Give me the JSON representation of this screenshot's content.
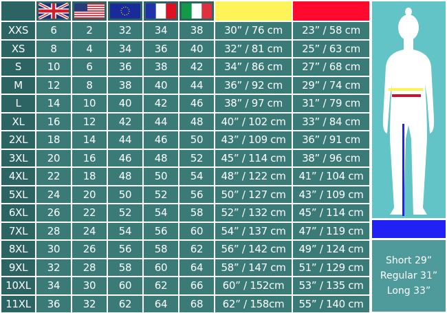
{
  "header": {
    "flags": [
      "uk-flag",
      "us-flag",
      "eu-flag",
      "france-flag",
      "italy-flag"
    ],
    "measure_colors": {
      "bust": "#fff35a",
      "waist": "#ff0a2e"
    }
  },
  "rows": [
    [
      "XXS",
      "6",
      "2",
      "32",
      "34",
      "38",
      "30” / 76 cm",
      "23” / 58 cm"
    ],
    [
      "XS",
      "8",
      "4",
      "34",
      "36",
      "40",
      "32” / 81 cm",
      "25” / 63 cm"
    ],
    [
      "S",
      "10",
      "6",
      "36",
      "38",
      "42",
      "34” / 86 cm",
      "27” / 68 cm"
    ],
    [
      "M",
      "12",
      "8",
      "38",
      "40",
      "44",
      "36” / 92 cm",
      "29” / 74 cm"
    ],
    [
      "L",
      "14",
      "10",
      "40",
      "42",
      "46",
      "38” / 97 cm",
      "31” / 79 cm"
    ],
    [
      "XL",
      "16",
      "12",
      "42",
      "44",
      "48",
      "40” / 102 cm",
      "33” / 84 cm"
    ],
    [
      "2XL",
      "18",
      "14",
      "44",
      "46",
      "50",
      "43” / 109 cm",
      "36” / 91 cm"
    ],
    [
      "3XL",
      "20",
      "16",
      "46",
      "48",
      "52",
      "45” / 114 cm",
      "38” / 96 cm"
    ],
    [
      "4XL",
      "22",
      "18",
      "48",
      "50",
      "54",
      "48” / 122 cm",
      "41” / 104 cm"
    ],
    [
      "5XL",
      "24",
      "20",
      "50",
      "52",
      "56",
      "50” / 127 cm",
      "43” / 109 cm"
    ],
    [
      "6XL",
      "26",
      "22",
      "52",
      "54",
      "58",
      "52” / 132 cm",
      "45” / 114 cm"
    ],
    [
      "7XL",
      "28",
      "24",
      "54",
      "56",
      "60",
      "54” / 137 cm",
      "47” / 119 cm"
    ],
    [
      "8XL",
      "30",
      "26",
      "56",
      "58",
      "62",
      "56” / 142 cm",
      "49” / 124 cm"
    ],
    [
      "9XL",
      "32",
      "28",
      "58",
      "60",
      "64",
      "58” / 147 cm",
      "51” / 129 cm"
    ],
    [
      "10XL",
      "34",
      "30",
      "60",
      "62",
      "66",
      "60” / 152cm",
      "53” / 135 cm"
    ],
    [
      "11XL",
      "36",
      "32",
      "62",
      "64",
      "68",
      "62” / 158cm",
      "55” / 140 cm"
    ]
  ],
  "inseam": {
    "color": "#2121f5",
    "lengths": [
      "Short 29”",
      "Regular 31”",
      "Long 33”"
    ]
  }
}
